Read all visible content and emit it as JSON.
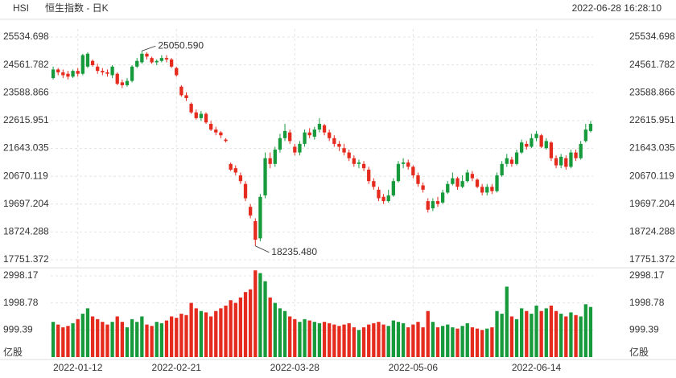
{
  "header": {
    "symbol": "HSI",
    "name": "恒生指数 - 日K",
    "timestamp": "2022-06-28 16:28:10"
  },
  "chart_data": {
    "type": "candlestick",
    "categories": [
      null,
      null,
      null,
      null,
      null,
      "2022-01-12",
      null,
      null,
      null,
      null,
      null,
      null,
      null,
      null,
      null,
      null,
      null,
      null,
      null,
      null,
      null,
      null,
      null,
      null,
      null,
      "2022-02-21",
      null,
      null,
      null,
      null,
      null,
      null,
      null,
      null,
      null,
      null,
      null,
      null,
      null,
      null,
      null,
      null,
      null,
      null,
      null,
      null,
      null,
      null,
      null,
      "2022-03-28",
      null,
      null,
      null,
      null,
      null,
      null,
      null,
      null,
      null,
      null,
      null,
      null,
      null,
      null,
      null,
      null,
      null,
      null,
      null,
      null,
      null,
      null,
      null,
      "2022-05-06",
      null,
      null,
      null,
      null,
      null,
      null,
      null,
      null,
      null,
      null,
      null,
      null,
      null,
      null,
      null,
      null,
      null,
      null,
      null,
      null,
      null,
      null,
      null,
      null,
      "2022-06-14",
      null,
      null,
      null,
      null,
      null,
      null,
      null,
      null,
      null,
      null,
      null
    ],
    "open": [
      24100,
      24400,
      24300,
      24250,
      24150,
      24350,
      24250,
      24500,
      24700,
      24500,
      24350,
      24300,
      24200,
      24250,
      23950,
      23850,
      24000,
      24500,
      24650,
      24950,
      24800,
      24650,
      24700,
      24800,
      24750,
      24450,
      23800,
      23500,
      23200,
      22900,
      22700,
      22850,
      22500,
      22300,
      22200,
      21950,
      21100,
      20950,
      20700,
      20400,
      19600,
      19100,
      18500,
      20000,
      21300,
      21100,
      21600,
      22000,
      22200,
      21700,
      21500,
      21800,
      22200,
      22050,
      22300,
      22450,
      22200,
      22000,
      21800,
      21650,
      21500,
      21300,
      21100,
      21100,
      20900,
      20500,
      20200,
      19950,
      19800,
      20000,
      20500,
      21100,
      21150,
      21000,
      20700,
      20350,
      19800,
      19550,
      19800,
      19750,
      20100,
      20400,
      20600,
      20300,
      20500,
      20750,
      20550,
      20300,
      20100,
      20300,
      20150,
      20700,
      21100,
      21250,
      21100,
      21500,
      21800,
      21700,
      22000,
      22100,
      21650,
      21850,
      21300,
      21050,
      21300,
      21000,
      21500,
      21300,
      21900,
      22250
    ],
    "high": [
      24500,
      24450,
      24400,
      24350,
      24400,
      24450,
      24950,
      25000,
      24750,
      24600,
      24450,
      24400,
      24550,
      24300,
      24050,
      24100,
      24550,
      24800,
      25050.59,
      25000,
      24850,
      24750,
      24900,
      24900,
      24800,
      24500,
      23850,
      23600,
      23250,
      23000,
      22950,
      22900,
      22600,
      22400,
      22250,
      22000,
      21150,
      21050,
      20800,
      20500,
      19700,
      19200,
      20050,
      21500,
      21500,
      21700,
      22150,
      22500,
      22300,
      21800,
      21900,
      22300,
      22350,
      22400,
      22700,
      22500,
      22300,
      22100,
      21900,
      21800,
      21600,
      21400,
      21250,
      21200,
      21000,
      20600,
      20300,
      20050,
      20200,
      20600,
      21200,
      21300,
      21250,
      21050,
      20800,
      20450,
      19900,
      19900,
      19950,
      20200,
      20500,
      20800,
      20650,
      20700,
      20900,
      20850,
      20600,
      20400,
      20400,
      20400,
      20800,
      21200,
      21450,
      21350,
      21600,
      21950,
      21900,
      22150,
      22250,
      22150,
      22000,
      21900,
      21400,
      21450,
      21400,
      21600,
      21600,
      21900,
      22500,
      22600
    ],
    "low": [
      24050,
      24200,
      24100,
      24050,
      24100,
      24150,
      24200,
      24450,
      24500,
      24250,
      24200,
      24150,
      24100,
      23850,
      23750,
      23800,
      23950,
      24450,
      24600,
      24750,
      24600,
      24550,
      24650,
      24650,
      24450,
      24150,
      23450,
      23300,
      22850,
      22650,
      22600,
      22500,
      22250,
      22100,
      22000,
      21850,
      20850,
      20700,
      20400,
      19800,
      19200,
      18235.48,
      18400,
      19900,
      20950,
      21000,
      21500,
      21900,
      21800,
      21400,
      21400,
      21700,
      22000,
      21950,
      22200,
      22100,
      21900,
      21700,
      21550,
      21400,
      21200,
      21000,
      20950,
      20850,
      20400,
      20200,
      19800,
      19700,
      19750,
      19950,
      20450,
      20950,
      20900,
      20600,
      20300,
      20100,
      19400,
      19450,
      19600,
      19700,
      20050,
      20350,
      20200,
      20250,
      20450,
      20500,
      20250,
      20000,
      20000,
      20050,
      20100,
      20650,
      21000,
      21000,
      21050,
      21450,
      21600,
      21650,
      21900,
      21650,
      21600,
      21200,
      20950,
      20950,
      20900,
      20950,
      21200,
      21250,
      21850,
      22200
    ],
    "close": [
      24400,
      24300,
      24200,
      24150,
      24350,
      24250,
      24900,
      24950,
      24550,
      24350,
      24300,
      24250,
      24500,
      23900,
      23850,
      24000,
      24500,
      24700,
      24950,
      24850,
      24650,
      24700,
      24800,
      24750,
      24500,
      24200,
      23500,
      23400,
      22900,
      22700,
      22850,
      22550,
      22300,
      22200,
      22100,
      21900,
      20900,
      20800,
      20500,
      19900,
      19300,
      18450,
      19950,
      21300,
      21100,
      21600,
      22000,
      22250,
      21900,
      21500,
      21800,
      22200,
      22100,
      22300,
      22500,
      22200,
      22000,
      21800,
      21700,
      21500,
      21300,
      21100,
      21150,
      20950,
      20500,
      20300,
      19900,
      19800,
      20000,
      20500,
      21100,
      21150,
      21000,
      20700,
      20400,
      20200,
      19500,
      19800,
      19700,
      20100,
      20400,
      20600,
      20300,
      20500,
      20800,
      20600,
      20300,
      20100,
      20300,
      20150,
      20700,
      21100,
      21300,
      21100,
      21500,
      21850,
      21700,
      22000,
      22150,
      21700,
      21900,
      21300,
      21050,
      21350,
      21000,
      21500,
      21300,
      21800,
      22300,
      22500
    ],
    "volume": [
      1300,
      1200,
      1100,
      1150,
      1250,
      1400,
      1600,
      1800,
      1500,
      1400,
      1300,
      1200,
      1300,
      1500,
      1300,
      1100,
      1400,
      1300,
      1500,
      1200,
      1150,
      1300,
      1250,
      1350,
      1500,
      1450,
      1600,
      1550,
      2000,
      1800,
      1700,
      1650,
      1500,
      1700,
      1800,
      1900,
      2100,
      2000,
      2200,
      2400,
      2500,
      3200,
      3100,
      2800,
      2200,
      2000,
      1800,
      1700,
      1500,
      1400,
      1300,
      1400,
      1350,
      1300,
      1250,
      1300,
      1250,
      1200,
      1150,
      1200,
      1250,
      1100,
      1000,
      1100,
      1200,
      1250,
      1300,
      1200,
      1150,
      1350,
      1300,
      1250,
      1100,
      1200,
      1300,
      1100,
      1700,
      1300,
      1100,
      1150,
      1200,
      1100,
      1050,
      1150,
      1250,
      1100,
      1050,
      1000,
      1050,
      1100,
      1700,
      1600,
      2600,
      1500,
      1400,
      1800,
      1700,
      1600,
      1900,
      1700,
      1800,
      1900,
      1700,
      1600,
      1500,
      1650,
      1550,
      1500,
      1950,
      1850
    ],
    "up_color": "#169a3c",
    "down_color": "#e52a1e",
    "ylim": [
      17751.372,
      25534.698
    ],
    "yticks": [
      17751.372,
      18724.288,
      19697.204,
      20670.119,
      21643.035,
      22615.951,
      23588.866,
      24561.782,
      25534.698
    ],
    "volume_ylim": [
      0,
      2998.17
    ],
    "volume_ticks": [
      999.39,
      1998.78,
      2998.17
    ],
    "volume_unit": "亿股",
    "annotations": [
      {
        "label": "25050.590",
        "value": 25050.59
      },
      {
        "label": "18235.480",
        "value": 18235.48
      }
    ],
    "grid": true
  }
}
